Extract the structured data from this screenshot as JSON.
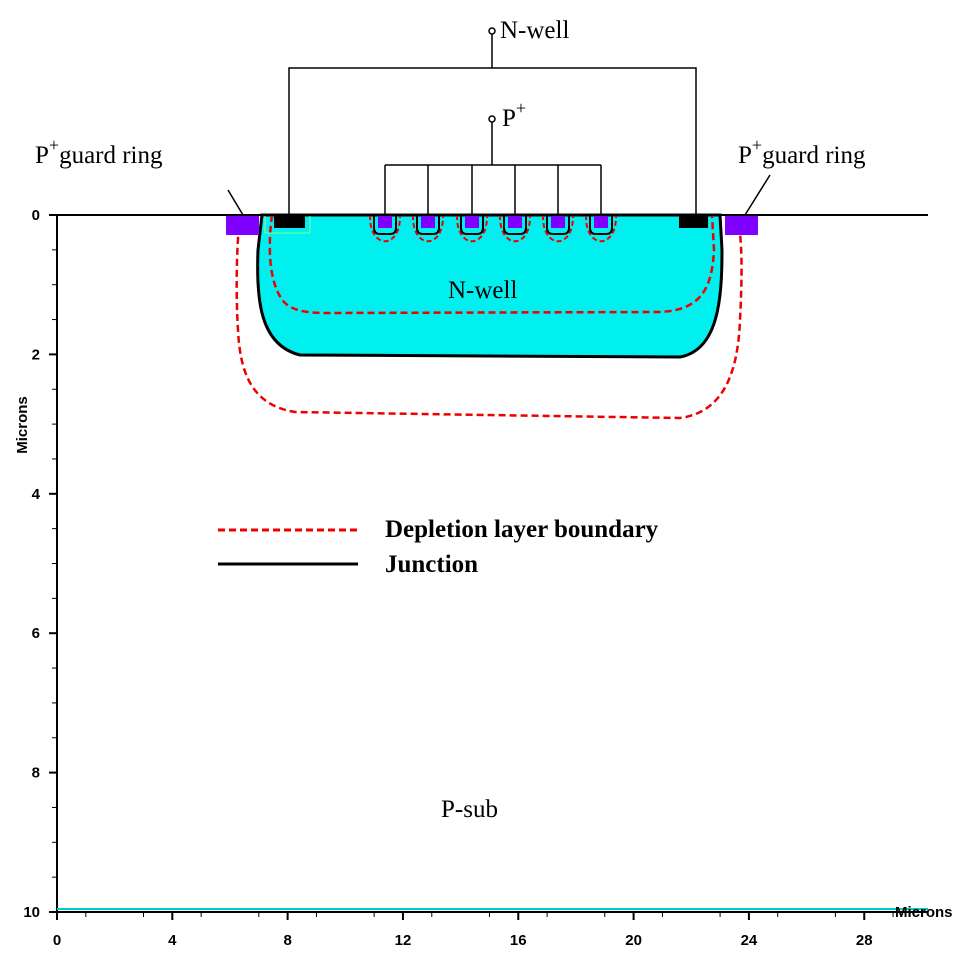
{
  "terminals": {
    "nwell": "N-well",
    "pplus": {
      "base": "P",
      "sup": "+"
    }
  },
  "guard_ring_left": {
    "base": "P",
    "sup": "+",
    "text": "guard ring"
  },
  "guard_ring_right": {
    "base": "P",
    "sup": "+",
    "text": "guard ring"
  },
  "regions": {
    "nwell": "N-well",
    "psub": "P-sub"
  },
  "legend": {
    "depletion": "Depletion layer boundary",
    "junction": "Junction"
  },
  "x_axis": {
    "label": "Microns",
    "ticks": [
      0,
      4,
      8,
      12,
      16,
      20,
      24,
      28
    ]
  },
  "y_axis": {
    "label": "Microns",
    "ticks": [
      0,
      2,
      4,
      6,
      8,
      10
    ]
  }
}
